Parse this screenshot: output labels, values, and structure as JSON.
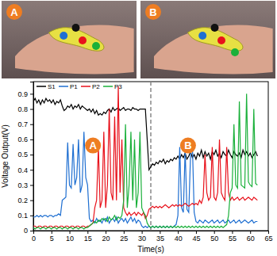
{
  "photos": [
    {
      "label": "A"
    },
    {
      "label": "B"
    }
  ],
  "chart_data": {
    "type": "line",
    "y_label": "Voltage Output(V)",
    "x_label": "Time(s)",
    "xlim": [
      0,
      65
    ],
    "ylim": [
      0,
      0.98
    ],
    "xticks": [
      0,
      5,
      10,
      15,
      20,
      25,
      30,
      35,
      40,
      45,
      50,
      55,
      60,
      65
    ],
    "yticks": [
      0,
      0.1,
      0.2,
      0.3,
      0.4,
      0.5,
      0.6,
      0.7,
      0.8,
      0.9
    ],
    "grid": false,
    "legend": "upper left",
    "vline_x": 32.5,
    "annotations": [
      {
        "text": "A",
        "x": 16.5,
        "y": 0.56
      },
      {
        "text": "B",
        "x": 42.8,
        "y": 0.56
      }
    ],
    "x": [
      0,
      0.5,
      1,
      1.5,
      2,
      2.5,
      3,
      3.5,
      4,
      4.5,
      5,
      5.5,
      6,
      6.5,
      7,
      7.5,
      8,
      8.5,
      9,
      9.5,
      10,
      10.5,
      11,
      11.5,
      12,
      12.5,
      13,
      13.5,
      14,
      14.5,
      15,
      15.5,
      16,
      16.5,
      17,
      17.5,
      18,
      18.5,
      19,
      19.5,
      20,
      20.5,
      21,
      21.5,
      22,
      22.5,
      23,
      23.5,
      24,
      24.5,
      25,
      25.5,
      26,
      26.5,
      27,
      27.5,
      28,
      28.5,
      29,
      29.5,
      30,
      30.5,
      31,
      31.5,
      32,
      32.5,
      33,
      33.5,
      34,
      34.5,
      35,
      35.5,
      36,
      36.5,
      37,
      37.5,
      38,
      38.5,
      39,
      39.5,
      40,
      40.5,
      41,
      41.5,
      42,
      42.5,
      43,
      43.5,
      44,
      44.5,
      45,
      45.5,
      46,
      46.5,
      47,
      47.5,
      48,
      48.5,
      49,
      49.5,
      50,
      50.5,
      51,
      51.5,
      52,
      52.5,
      53,
      53.5,
      54,
      54.5,
      55,
      55.5,
      56,
      56.5,
      57,
      57.5,
      58,
      58.5,
      59,
      59.5,
      60,
      60.5,
      61,
      61.5,
      62
    ],
    "series": [
      {
        "name": "S1",
        "color": "#000000",
        "values": [
          0.85,
          0.87,
          0.84,
          0.86,
          0.83,
          0.86,
          0.84,
          0.87,
          0.85,
          0.86,
          0.84,
          0.86,
          0.83,
          0.85,
          0.84,
          0.86,
          0.82,
          0.79,
          0.8,
          0.82,
          0.81,
          0.83,
          0.8,
          0.82,
          0.81,
          0.83,
          0.8,
          0.82,
          0.81,
          0.8,
          0.79,
          0.8,
          0.78,
          0.8,
          0.77,
          0.79,
          0.76,
          0.77,
          0.76,
          0.78,
          0.77,
          0.79,
          0.8,
          0.78,
          0.81,
          0.79,
          0.8,
          0.81,
          0.79,
          0.8,
          0.81,
          0.79,
          0.8,
          0.8,
          0.79,
          0.81,
          0.8,
          0.8,
          0.79,
          0.8,
          0.8,
          0.8,
          0.8,
          0.6,
          0.4,
          0.42,
          0.44,
          0.43,
          0.45,
          0.44,
          0.46,
          0.45,
          0.47,
          0.44,
          0.46,
          0.45,
          0.47,
          0.46,
          0.48,
          0.47,
          0.49,
          0.47,
          0.5,
          0.48,
          0.51,
          0.47,
          0.49,
          0.52,
          0.48,
          0.5,
          0.47,
          0.51,
          0.49,
          0.53,
          0.48,
          0.52,
          0.49,
          0.51,
          0.47,
          0.52,
          0.5,
          0.53,
          0.49,
          0.51,
          0.48,
          0.52,
          0.5,
          0.49,
          0.53,
          0.5,
          0.48,
          0.52,
          0.5,
          0.49,
          0.51,
          0.48,
          0.53,
          0.5,
          0.52,
          0.49,
          0.51,
          0.48,
          0.5,
          0.52,
          0.49
        ]
      },
      {
        "name": "P1",
        "color": "#1f6fd1",
        "values": [
          0.09,
          0.09,
          0.1,
          0.09,
          0.1,
          0.09,
          0.1,
          0.1,
          0.09,
          0.1,
          0.1,
          0.09,
          0.1,
          0.1,
          0.11,
          0.1,
          0.2,
          0.21,
          0.22,
          0.58,
          0.3,
          0.28,
          0.57,
          0.3,
          0.35,
          0.6,
          0.25,
          0.3,
          0.65,
          0.35,
          0.3,
          0.08,
          0.06,
          0.07,
          0.05,
          0.08,
          0.06,
          0.07,
          0.05,
          0.08,
          0.06,
          0.09,
          0.05,
          0.07,
          0.08,
          0.06,
          0.09,
          0.05,
          0.07,
          0.08,
          0.06,
          0.08,
          0.05,
          0.07,
          0.09,
          0.06,
          0.08,
          0.05,
          0.07,
          0.06,
          0.03,
          0.02,
          0.03,
          0.02,
          0.03,
          0.02,
          0.03,
          0.02,
          0.03,
          0.02,
          0.03,
          0.02,
          0.03,
          0.02,
          0.03,
          0.02,
          0.03,
          0.02,
          0.03,
          0.04,
          0.1,
          0.55,
          0.15,
          0.12,
          0.53,
          0.14,
          0.12,
          0.5,
          0.57,
          0.12,
          0.06,
          0.05,
          0.07,
          0.06,
          0.05,
          0.07,
          0.06,
          0.05,
          0.06,
          0.07,
          0.05,
          0.06,
          0.07,
          0.05,
          0.06,
          0.07,
          0.05,
          0.06,
          0.07,
          0.05,
          0.06,
          0.07,
          0.05,
          0.06,
          0.07,
          0.05,
          0.06,
          0.07,
          0.06,
          0.05,
          0.06,
          0.07,
          0.05,
          0.06,
          0.06
        ]
      },
      {
        "name": "P2",
        "color": "#e8111b",
        "values": [
          0.03,
          0.03,
          0.02,
          0.03,
          0.03,
          0.02,
          0.03,
          0.03,
          0.02,
          0.03,
          0.03,
          0.02,
          0.03,
          0.03,
          0.02,
          0.03,
          0.03,
          0.02,
          0.03,
          0.03,
          0.02,
          0.03,
          0.03,
          0.02,
          0.03,
          0.03,
          0.02,
          0.03,
          0.03,
          0.02,
          0.03,
          0.03,
          0.04,
          0.05,
          0.15,
          0.2,
          0.55,
          0.15,
          0.2,
          0.65,
          0.15,
          0.3,
          0.8,
          0.25,
          0.2,
          0.75,
          0.2,
          0.95,
          0.25,
          0.6,
          0.15,
          0.12,
          0.1,
          0.12,
          0.1,
          0.11,
          0.12,
          0.1,
          0.12,
          0.11,
          0.1,
          0.12,
          0.08,
          0.1,
          0.14,
          0.15,
          0.16,
          0.15,
          0.16,
          0.15,
          0.16,
          0.15,
          0.16,
          0.17,
          0.16,
          0.15,
          0.16,
          0.17,
          0.16,
          0.17,
          0.16,
          0.17,
          0.16,
          0.17,
          0.18,
          0.17,
          0.16,
          0.17,
          0.18,
          0.17,
          0.18,
          0.17,
          0.2,
          0.18,
          0.22,
          0.5,
          0.25,
          0.2,
          0.22,
          0.55,
          0.22,
          0.2,
          0.25,
          0.6,
          0.25,
          0.22,
          0.2,
          0.55,
          0.25,
          0.2,
          0.22,
          0.2,
          0.21,
          0.22,
          0.2,
          0.21,
          0.22,
          0.2,
          0.21,
          0.22,
          0.21,
          0.2,
          0.22,
          0.21,
          0.2
        ]
      },
      {
        "name": "P3",
        "color": "#1ab03a",
        "values": [
          0.02,
          0.01,
          0.02,
          0.02,
          0.01,
          0.02,
          0.02,
          0.01,
          0.02,
          0.02,
          0.01,
          0.02,
          0.02,
          0.01,
          0.02,
          0.02,
          0.01,
          0.02,
          0.02,
          0.01,
          0.02,
          0.02,
          0.01,
          0.02,
          0.02,
          0.01,
          0.02,
          0.02,
          0.01,
          0.02,
          0.02,
          0.03,
          0.04,
          0.05,
          0.06,
          0.05,
          0.07,
          0.06,
          0.08,
          0.07,
          0.08,
          0.06,
          0.09,
          0.07,
          0.08,
          0.1,
          0.07,
          0.09,
          0.08,
          0.1,
          0.2,
          0.7,
          0.15,
          0.3,
          0.65,
          0.2,
          0.6,
          0.15,
          0.25,
          0.65,
          0.15,
          0.12,
          0.1,
          0.05,
          0.03,
          0.02,
          0.03,
          0.02,
          0.03,
          0.02,
          0.03,
          0.02,
          0.03,
          0.02,
          0.03,
          0.02,
          0.03,
          0.02,
          0.03,
          0.02,
          0.03,
          0.02,
          0.03,
          0.02,
          0.03,
          0.02,
          0.03,
          0.02,
          0.03,
          0.02,
          0.03,
          0.02,
          0.03,
          0.02,
          0.03,
          0.02,
          0.03,
          0.02,
          0.03,
          0.02,
          0.03,
          0.02,
          0.03,
          0.02,
          0.03,
          0.02,
          0.03,
          0.04,
          0.1,
          0.25,
          0.28,
          0.7,
          0.3,
          0.28,
          0.85,
          0.3,
          0.29,
          0.28,
          0.9,
          0.32,
          0.3,
          0.29,
          0.8,
          0.31,
          0.3
        ]
      }
    ]
  }
}
